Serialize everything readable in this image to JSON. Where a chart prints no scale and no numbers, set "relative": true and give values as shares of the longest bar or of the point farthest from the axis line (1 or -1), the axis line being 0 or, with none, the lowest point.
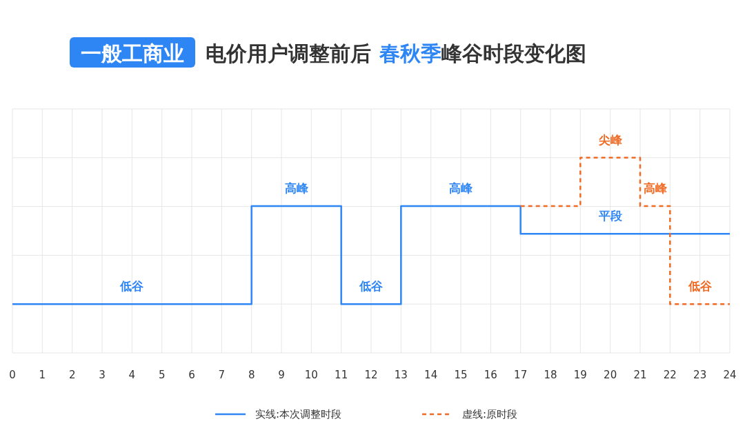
{
  "chart_data": {
    "type": "step",
    "title": "一般工商业 电价用户调整前后 春秋季峰谷时段变化图",
    "relative": true,
    "xlim": [
      0,
      24
    ],
    "xticks": [
      0,
      1,
      2,
      3,
      4,
      5,
      6,
      7,
      8,
      9,
      10,
      11,
      12,
      13,
      14,
      15,
      16,
      17,
      18,
      19,
      20,
      21,
      22,
      23,
      24
    ],
    "grid": true,
    "legend": "bottom",
    "marker": "none",
    "series": [
      {
        "name": "实线:本次调整时段",
        "color": "#2e86f5",
        "line_style": "solid",
        "x": [
          0,
          8,
          11,
          13,
          17,
          24
        ],
        "values": [
          0,
          0.67,
          0,
          0.67,
          0.48,
          0.48
        ]
      },
      {
        "name": "虚线:原时段",
        "color": "#f06a24",
        "line_style": "dashed",
        "x": [
          17,
          19,
          21,
          22,
          24
        ],
        "values": [
          0.67,
          1,
          0.67,
          0,
          0
        ]
      }
    ],
    "annotations": [
      {
        "text": "低谷",
        "x": 4,
        "y": 0
      },
      {
        "text": "高峰",
        "x": 9.5,
        "y": 0.67
      },
      {
        "text": "低谷",
        "x": 12,
        "y": 0
      },
      {
        "text": "高峰",
        "x": 15,
        "y": 0.67
      },
      {
        "text": "平段",
        "x": 20,
        "y": 0.48
      },
      {
        "text": "尖峰",
        "x": 20,
        "y": 1
      },
      {
        "text": "高峰",
        "x": 21.5,
        "y": 0.67
      },
      {
        "text": "低谷",
        "x": 23,
        "y": 0
      }
    ]
  }
}
